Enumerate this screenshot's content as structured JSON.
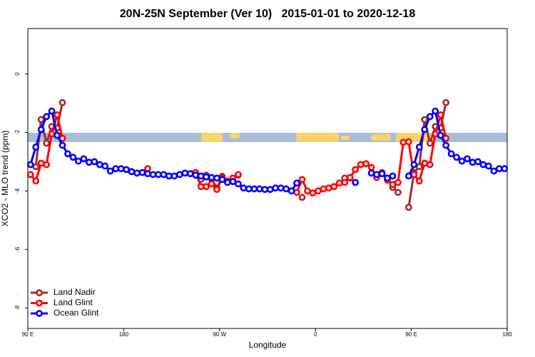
{
  "chart_data": {
    "type": "line",
    "title": "20N-25N September (Ver 10)   2015-01-01 to 2020-12-18",
    "x_label": "Longitude",
    "y_label": "XCO2 - MLO trend (ppm)",
    "xlim": [
      90,
      540
    ],
    "ylim": [
      -8.7,
      1.55
    ],
    "xticks": [
      {
        "value": 90,
        "label": "90 E"
      },
      180,
      {
        "value": 270,
        "label": "90 W"
      },
      {
        "value": 360,
        "label": "0"
      },
      {
        "value": 450,
        "label": "90 E"
      },
      {
        "value": 540,
        "label": "180"
      }
    ],
    "yticks": [
      0,
      -2,
      -4,
      -6,
      -8
    ],
    "legend": "bottomleft",
    "x": [
      92.5,
      97.5,
      102.5,
      107.5,
      112.5,
      117.5,
      122.5,
      127.5,
      132.5,
      137.5,
      142.5,
      147.5,
      152.5,
      157.5,
      162.5,
      167.5,
      172.5,
      177.5,
      182.5,
      187.5,
      192.5,
      197.5,
      202.5,
      207.5,
      212.5,
      217.5,
      222.5,
      227.5,
      232.5,
      237.5,
      242.5,
      247.5,
      252.5,
      257.5,
      262.5,
      267.5,
      272.5,
      277.5,
      282.5,
      287.5,
      292.5,
      297.5,
      302.5,
      307.5,
      312.5,
      317.5,
      322.5,
      327.5,
      332.5,
      337.5,
      342.5,
      347.5,
      352.5,
      357.5,
      362.5,
      367.5,
      372.5,
      377.5,
      382.5,
      387.5,
      392.5,
      397.5,
      402.5,
      407.5,
      412.5,
      417.5,
      422.5,
      427.5,
      432.5,
      437.5,
      442.5,
      447.5,
      452.5,
      457.5,
      462.5,
      467.5,
      472.5,
      477.5,
      482.5,
      487.5,
      492.5,
      497.5,
      502.5,
      507.5,
      512.5,
      517.5,
      522.5,
      527.5,
      532.5,
      537.5
    ],
    "series": [
      {
        "name": "Land Nadir",
        "color": "#a52a2a",
        "values": [
          null,
          -3.17,
          -1.56,
          -2.37,
          -1.8,
          -1.85,
          -0.98,
          null,
          null,
          null,
          null,
          null,
          null,
          null,
          null,
          null,
          null,
          null,
          null,
          null,
          null,
          null,
          null,
          null,
          null,
          null,
          null,
          null,
          null,
          null,
          null,
          -3.37,
          -3.6,
          -3.46,
          -3.6,
          -3.9,
          -3.5,
          null,
          null,
          -3.46,
          null,
          null,
          null,
          null,
          null,
          null,
          null,
          null,
          null,
          null,
          null,
          -4.22,
          null,
          null,
          null,
          null,
          null,
          null,
          null,
          -3.56,
          -3.56,
          null,
          null,
          null,
          null,
          null,
          null,
          null,
          -3.88,
          -4.05,
          null,
          -4.56,
          -3.37,
          -3.17,
          -1.56,
          -2.37,
          -1.8,
          -1.85,
          -0.98,
          null,
          null,
          null,
          null,
          null,
          null,
          null,
          null,
          null,
          null,
          null
        ]
      },
      {
        "name": "Land Glint",
        "color": "#ff0000",
        "values": [
          -3.44,
          -3.66,
          -3.05,
          -3.1,
          -2.05,
          -1.4,
          -2.2,
          null,
          null,
          null,
          null,
          null,
          null,
          null,
          null,
          null,
          null,
          null,
          null,
          null,
          null,
          null,
          -3.24,
          null,
          null,
          null,
          null,
          null,
          null,
          null,
          null,
          -3.37,
          -3.85,
          -3.85,
          -3.76,
          -3.95,
          -3.56,
          -3.66,
          -3.56,
          -3.44,
          null,
          null,
          null,
          null,
          null,
          null,
          null,
          null,
          null,
          null,
          -4.05,
          -3.61,
          -4.0,
          -4.07,
          -4.0,
          -3.93,
          -3.9,
          -3.85,
          -3.73,
          -3.71,
          -3.54,
          -3.27,
          -3.1,
          -3.07,
          -3.2,
          -3.54,
          -3.37,
          -3.63,
          -3.78,
          -3.71,
          -2.34,
          -2.32,
          -3.44,
          -3.66,
          -3.05,
          -3.1,
          -2.05,
          -1.4,
          -2.2,
          null,
          null,
          null,
          null,
          null,
          null,
          null,
          null,
          null,
          null,
          null
        ]
      },
      {
        "name": "Ocean Glint",
        "color": "#0000ff",
        "values": [
          -3.1,
          -2.5,
          -1.9,
          -1.46,
          -1.27,
          -2.1,
          -2.44,
          -2.73,
          -2.85,
          -2.98,
          -2.9,
          -3.02,
          -3.0,
          -3.1,
          -3.15,
          -3.32,
          -3.24,
          -3.24,
          -3.27,
          -3.34,
          -3.39,
          -3.37,
          -3.41,
          -3.44,
          -3.44,
          -3.44,
          -3.49,
          -3.49,
          -3.44,
          -3.39,
          -3.41,
          -3.46,
          -3.49,
          -3.52,
          -3.54,
          -3.56,
          -3.61,
          -3.71,
          -3.68,
          -3.76,
          -3.9,
          -3.93,
          -3.93,
          -3.93,
          -3.95,
          -3.95,
          -3.9,
          -3.9,
          -3.93,
          -4.0,
          -3.73,
          null,
          null,
          null,
          null,
          null,
          null,
          null,
          null,
          null,
          null,
          -3.71,
          null,
          null,
          -3.39,
          -3.44,
          -3.41,
          -3.56,
          -3.49,
          null,
          null,
          -3.49,
          -3.1,
          -2.5,
          -1.9,
          -1.46,
          -1.27,
          -2.1,
          -2.44,
          -2.73,
          -2.85,
          -2.98,
          -2.9,
          -3.02,
          -3.0,
          -3.1,
          -3.15,
          -3.32,
          -3.24,
          -3.24
        ]
      }
    ]
  }
}
